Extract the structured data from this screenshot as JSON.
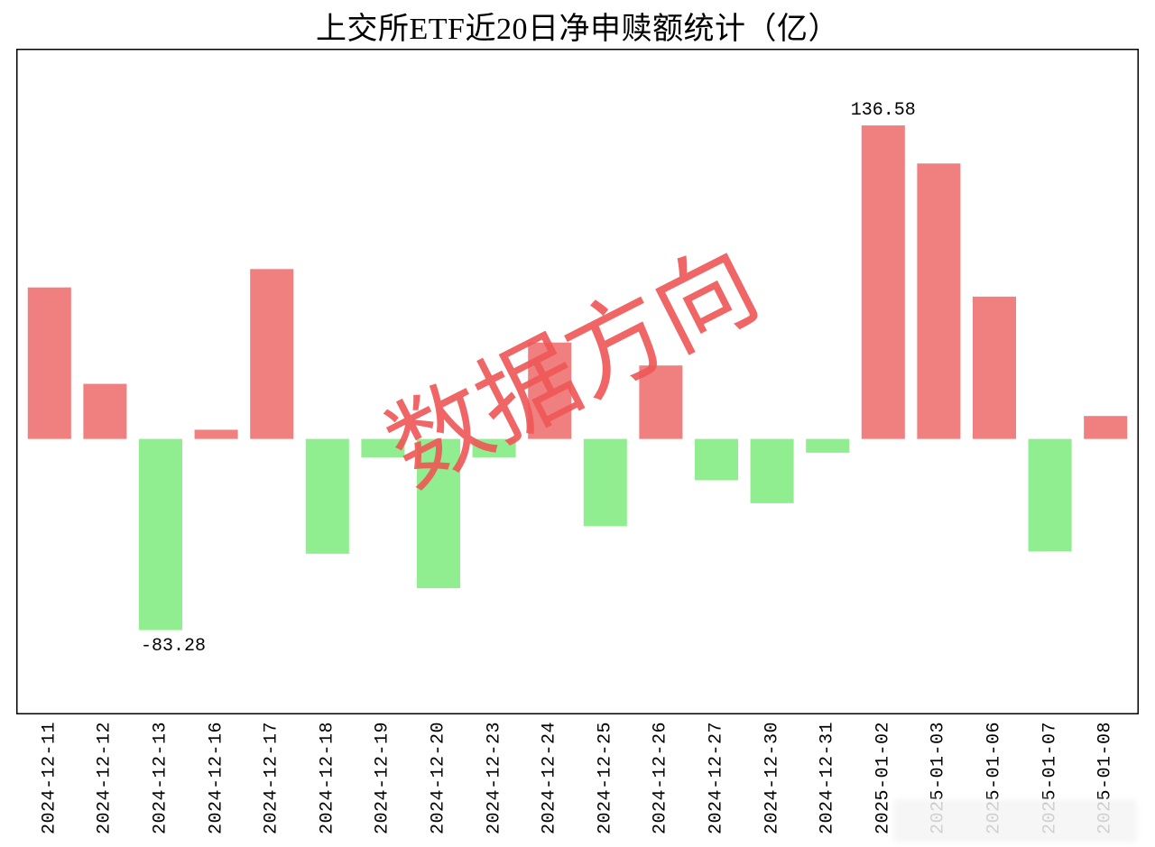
{
  "chart": {
    "type": "bar",
    "title": "上交所ETF近20日净申赎额统计（亿）",
    "title_fontsize": 34,
    "title_color": "#000000",
    "background_color": "#ffffff",
    "plot_border_color": "#000000",
    "plot_border_width": 1.5,
    "positive_color": "#f08080",
    "negative_color": "#90ee90",
    "bar_width_ratio": 0.78,
    "ylim": [
      -120,
      170
    ],
    "zero_line_color": "#000000",
    "watermark_text": "数据方向",
    "watermark_color": "rgba(238,85,85,0.9)",
    "watermark_rotation_deg": -27,
    "categories": [
      "2024-12-11",
      "2024-12-12",
      "2024-12-13",
      "2024-12-16",
      "2024-12-17",
      "2024-12-18",
      "2024-12-19",
      "2024-12-20",
      "2024-12-23",
      "2024-12-24",
      "2024-12-25",
      "2024-12-26",
      "2024-12-27",
      "2024-12-30",
      "2024-12-31",
      "2025-01-02",
      "2025-01-03",
      "2025-01-06",
      "2025-01-07",
      "2025-01-08"
    ],
    "values": [
      66,
      24,
      -83.28,
      4,
      74,
      -50,
      -8,
      -65,
      -8,
      42,
      -38,
      32,
      -18,
      -28,
      -6,
      136.58,
      120,
      62,
      -49,
      10
    ],
    "max_label": {
      "text": "136.58",
      "index": 15
    },
    "min_label": {
      "text": "-83.28",
      "index": 2
    },
    "xlabel_fontsize": 20,
    "xlabel_color": "#000000",
    "xlabel_rotation": -90,
    "annot_fontsize": 20,
    "annot_color": "#000000"
  }
}
